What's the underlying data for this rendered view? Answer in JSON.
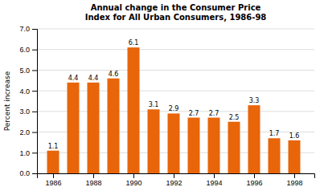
{
  "chart_data": {
    "type": "bar",
    "title": "Annual change in the Consumer Price\nIndex for All Urban Consumers, 1986-98",
    "y_label": "Percent increase",
    "x": [
      1986,
      1987,
      1988,
      1989,
      1990,
      1991,
      1992,
      1993,
      1994,
      1995,
      1996,
      1997,
      1998
    ],
    "values": [
      1.1,
      4.4,
      4.4,
      4.6,
      6.1,
      3.1,
      2.9,
      2.7,
      2.7,
      2.5,
      3.3,
      1.7,
      1.6
    ],
    "color": "#E8650A",
    "xlim": [
      1985.2,
      1999.0
    ],
    "xticks": [
      1986,
      1988,
      1990,
      1992,
      1994,
      1996,
      1998
    ],
    "ylim": [
      0.0,
      7.0
    ],
    "yticks": [
      {
        "value": 0.0,
        "label": "0.0"
      },
      {
        "value": 1.0,
        "label": "1.0"
      },
      {
        "value": 2.0,
        "label": "2.0"
      },
      {
        "value": 3.0,
        "label": "3.0"
      },
      {
        "value": 4.0,
        "label": "4.0"
      },
      {
        "value": 5.0,
        "label": "5.0"
      },
      {
        "value": 6.0,
        "label": "6.0"
      },
      {
        "value": 7.0,
        "label": "7.0"
      }
    ],
    "grid": true,
    "data_labels": true
  }
}
